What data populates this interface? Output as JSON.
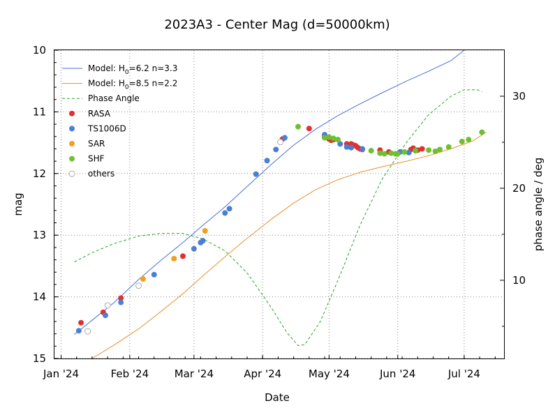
{
  "chart_data": {
    "type": "scatter",
    "title": "2023A3 - Center Mag (d=50000km)",
    "xlabel": "Date",
    "ylabel": "mag",
    "y2label": "phase angle / deg",
    "x_ticks": [
      {
        "date": "2024-01-01",
        "label": "Jan '24"
      },
      {
        "date": "2024-02-01",
        "label": "Feb '24"
      },
      {
        "date": "2024-03-01",
        "label": "Mar '24"
      },
      {
        "date": "2024-04-01",
        "label": "Apr '24"
      },
      {
        "date": "2024-05-01",
        "label": "May '24"
      },
      {
        "date": "2024-06-01",
        "label": "Jun '24"
      },
      {
        "date": "2024-07-01",
        "label": "Jul '24"
      }
    ],
    "xlim": [
      "2023-12-29",
      "2024-07-19"
    ],
    "ylim": [
      15,
      10
    ],
    "y_ticks": [
      10,
      11,
      12,
      13,
      14,
      15
    ],
    "y2lim": [
      1.5,
      35
    ],
    "y2_ticks": [
      10,
      20,
      30
    ],
    "grid": true,
    "legend_position": "top-left",
    "series": [
      {
        "name": "Model: H0=6.2 n=3.3",
        "legend": {
          "prefix": "Model: H",
          "sub": "0",
          "suffix": "=6.2 n=3.3"
        },
        "kind": "line",
        "axis": "left",
        "color": "#4a6ed8",
        "dash": "",
        "points": [
          [
            "2024-01-07",
            14.61
          ],
          [
            "2024-01-15",
            14.38
          ],
          [
            "2024-01-25",
            14.09
          ],
          [
            "2024-02-05",
            13.72
          ],
          [
            "2024-02-15",
            13.41
          ],
          [
            "2024-02-25",
            13.12
          ],
          [
            "2024-03-05",
            12.84
          ],
          [
            "2024-03-15",
            12.54
          ],
          [
            "2024-03-25",
            12.21
          ],
          [
            "2024-04-05",
            11.85
          ],
          [
            "2024-04-15",
            11.54
          ],
          [
            "2024-04-25",
            11.28
          ],
          [
            "2024-05-05",
            11.06
          ],
          [
            "2024-05-15",
            10.87
          ],
          [
            "2024-05-25",
            10.69
          ],
          [
            "2024-06-05",
            10.5
          ],
          [
            "2024-06-15",
            10.34
          ],
          [
            "2024-06-25",
            10.17
          ],
          [
            "2024-07-01",
            10.0
          ]
        ]
      },
      {
        "name": "Model: H0=8.5 n=2.2",
        "legend": {
          "prefix": "Model: H",
          "sub": "0",
          "suffix": "=8.5 n=2.2"
        },
        "kind": "line",
        "axis": "left",
        "color": "#e8902a",
        "dash": "",
        "points": [
          [
            "2024-01-15",
            15.0
          ],
          [
            "2024-01-25",
            14.78
          ],
          [
            "2024-02-05",
            14.52
          ],
          [
            "2024-02-15",
            14.24
          ],
          [
            "2024-02-25",
            13.95
          ],
          [
            "2024-03-05",
            13.66
          ],
          [
            "2024-03-15",
            13.35
          ],
          [
            "2024-03-25",
            13.05
          ],
          [
            "2024-04-05",
            12.74
          ],
          [
            "2024-04-15",
            12.48
          ],
          [
            "2024-04-25",
            12.26
          ],
          [
            "2024-05-05",
            12.1
          ],
          [
            "2024-05-15",
            11.98
          ],
          [
            "2024-05-25",
            11.89
          ],
          [
            "2024-06-05",
            11.8
          ],
          [
            "2024-06-15",
            11.71
          ],
          [
            "2024-06-25",
            11.6
          ],
          [
            "2024-07-05",
            11.47
          ],
          [
            "2024-07-11",
            11.33
          ]
        ]
      },
      {
        "name": "Phase Angle",
        "kind": "line",
        "axis": "right",
        "color": "#22aa22",
        "dash": "4,3",
        "points": [
          [
            "2024-01-07",
            12.0
          ],
          [
            "2024-01-15",
            13.0
          ],
          [
            "2024-01-25",
            14.0
          ],
          [
            "2024-02-05",
            14.8
          ],
          [
            "2024-02-15",
            15.1
          ],
          [
            "2024-02-25",
            15.1
          ],
          [
            "2024-03-05",
            14.5
          ],
          [
            "2024-03-15",
            13.2
          ],
          [
            "2024-03-25",
            10.8
          ],
          [
            "2024-04-05",
            7.0
          ],
          [
            "2024-04-12",
            4.3
          ],
          [
            "2024-04-17",
            2.9
          ],
          [
            "2024-04-20",
            3.0
          ],
          [
            "2024-04-27",
            5.5
          ],
          [
            "2024-05-05",
            10.0
          ],
          [
            "2024-05-15",
            16.0
          ],
          [
            "2024-05-25",
            21.0
          ],
          [
            "2024-06-05",
            25.0
          ],
          [
            "2024-06-15",
            28.0
          ],
          [
            "2024-06-25",
            30.0
          ],
          [
            "2024-07-01",
            30.7
          ],
          [
            "2024-07-07",
            30.7
          ],
          [
            "2024-07-09",
            30.5
          ]
        ]
      },
      {
        "name": "RASA",
        "kind": "marker",
        "axis": "left",
        "color": "#e03030",
        "points": [
          [
            "2024-01-10",
            14.42
          ],
          [
            "2024-01-20",
            14.25
          ],
          [
            "2024-01-28",
            14.02
          ],
          [
            "2024-02-25",
            13.34
          ],
          [
            "2024-04-10",
            11.44
          ],
          [
            "2024-04-22",
            11.27
          ],
          [
            "2024-04-29",
            11.4
          ],
          [
            "2024-05-01",
            11.44
          ],
          [
            "2024-05-02",
            11.46
          ],
          [
            "2024-05-03",
            11.45
          ],
          [
            "2024-05-09",
            11.52
          ],
          [
            "2024-05-10",
            11.55
          ],
          [
            "2024-05-11",
            11.52
          ],
          [
            "2024-05-12",
            11.54
          ],
          [
            "2024-05-13",
            11.55
          ],
          [
            "2024-05-14",
            11.58
          ],
          [
            "2024-05-15",
            11.6
          ],
          [
            "2024-05-16",
            11.61
          ],
          [
            "2024-05-24",
            11.62
          ],
          [
            "2024-05-28",
            11.65
          ],
          [
            "2024-06-07",
            11.61
          ],
          [
            "2024-06-08",
            11.59
          ],
          [
            "2024-06-10",
            11.62
          ],
          [
            "2024-06-12",
            11.6
          ]
        ]
      },
      {
        "name": "TS1006D",
        "kind": "marker",
        "axis": "left",
        "color": "#4a7fd4",
        "points": [
          [
            "2024-01-09",
            14.55
          ],
          [
            "2024-01-21",
            14.3
          ],
          [
            "2024-01-28",
            14.09
          ],
          [
            "2024-02-12",
            13.64
          ],
          [
            "2024-03-01",
            13.22
          ],
          [
            "2024-03-04",
            13.12
          ],
          [
            "2024-03-05",
            13.09
          ],
          [
            "2024-03-15",
            12.64
          ],
          [
            "2024-03-17",
            12.57
          ],
          [
            "2024-03-29",
            12.01
          ],
          [
            "2024-04-03",
            11.79
          ],
          [
            "2024-04-07",
            11.61
          ],
          [
            "2024-04-11",
            11.42
          ],
          [
            "2024-04-29",
            11.37
          ],
          [
            "2024-05-06",
            11.52
          ],
          [
            "2024-05-09",
            11.57
          ],
          [
            "2024-05-11",
            11.58
          ],
          [
            "2024-05-16",
            11.6
          ],
          [
            "2024-06-02",
            11.65
          ],
          [
            "2024-06-06",
            11.66
          ]
        ]
      },
      {
        "name": "SAR",
        "kind": "marker",
        "axis": "left",
        "color": "#f0a020",
        "points": [
          [
            "2024-02-07",
            13.71
          ],
          [
            "2024-02-21",
            13.38
          ],
          [
            "2024-03-06",
            12.93
          ]
        ]
      },
      {
        "name": "SHF",
        "kind": "marker",
        "axis": "left",
        "color": "#6ec030",
        "points": [
          [
            "2024-04-17",
            11.24
          ],
          [
            "2024-04-29",
            11.42
          ],
          [
            "2024-05-01",
            11.41
          ],
          [
            "2024-05-03",
            11.43
          ],
          [
            "2024-05-05",
            11.45
          ],
          [
            "2024-05-20",
            11.63
          ],
          [
            "2024-05-24",
            11.67
          ],
          [
            "2024-05-26",
            11.68
          ],
          [
            "2024-05-29",
            11.67
          ],
          [
            "2024-05-31",
            11.68
          ],
          [
            "2024-06-01",
            11.68
          ],
          [
            "2024-06-04",
            11.65
          ],
          [
            "2024-06-09",
            11.63
          ],
          [
            "2024-06-15",
            11.62
          ],
          [
            "2024-06-18",
            11.64
          ],
          [
            "2024-06-20",
            11.61
          ],
          [
            "2024-06-24",
            11.57
          ],
          [
            "2024-06-30",
            11.48
          ],
          [
            "2024-07-03",
            11.45
          ],
          [
            "2024-07-09",
            11.33
          ]
        ]
      },
      {
        "name": "others",
        "kind": "marker",
        "axis": "left",
        "color": "#aaaaaa",
        "hollow": true,
        "points": [
          [
            "2024-01-13",
            14.56
          ],
          [
            "2024-01-22",
            14.14
          ],
          [
            "2024-02-05",
            13.82
          ],
          [
            "2024-04-09",
            11.49
          ]
        ]
      }
    ]
  }
}
